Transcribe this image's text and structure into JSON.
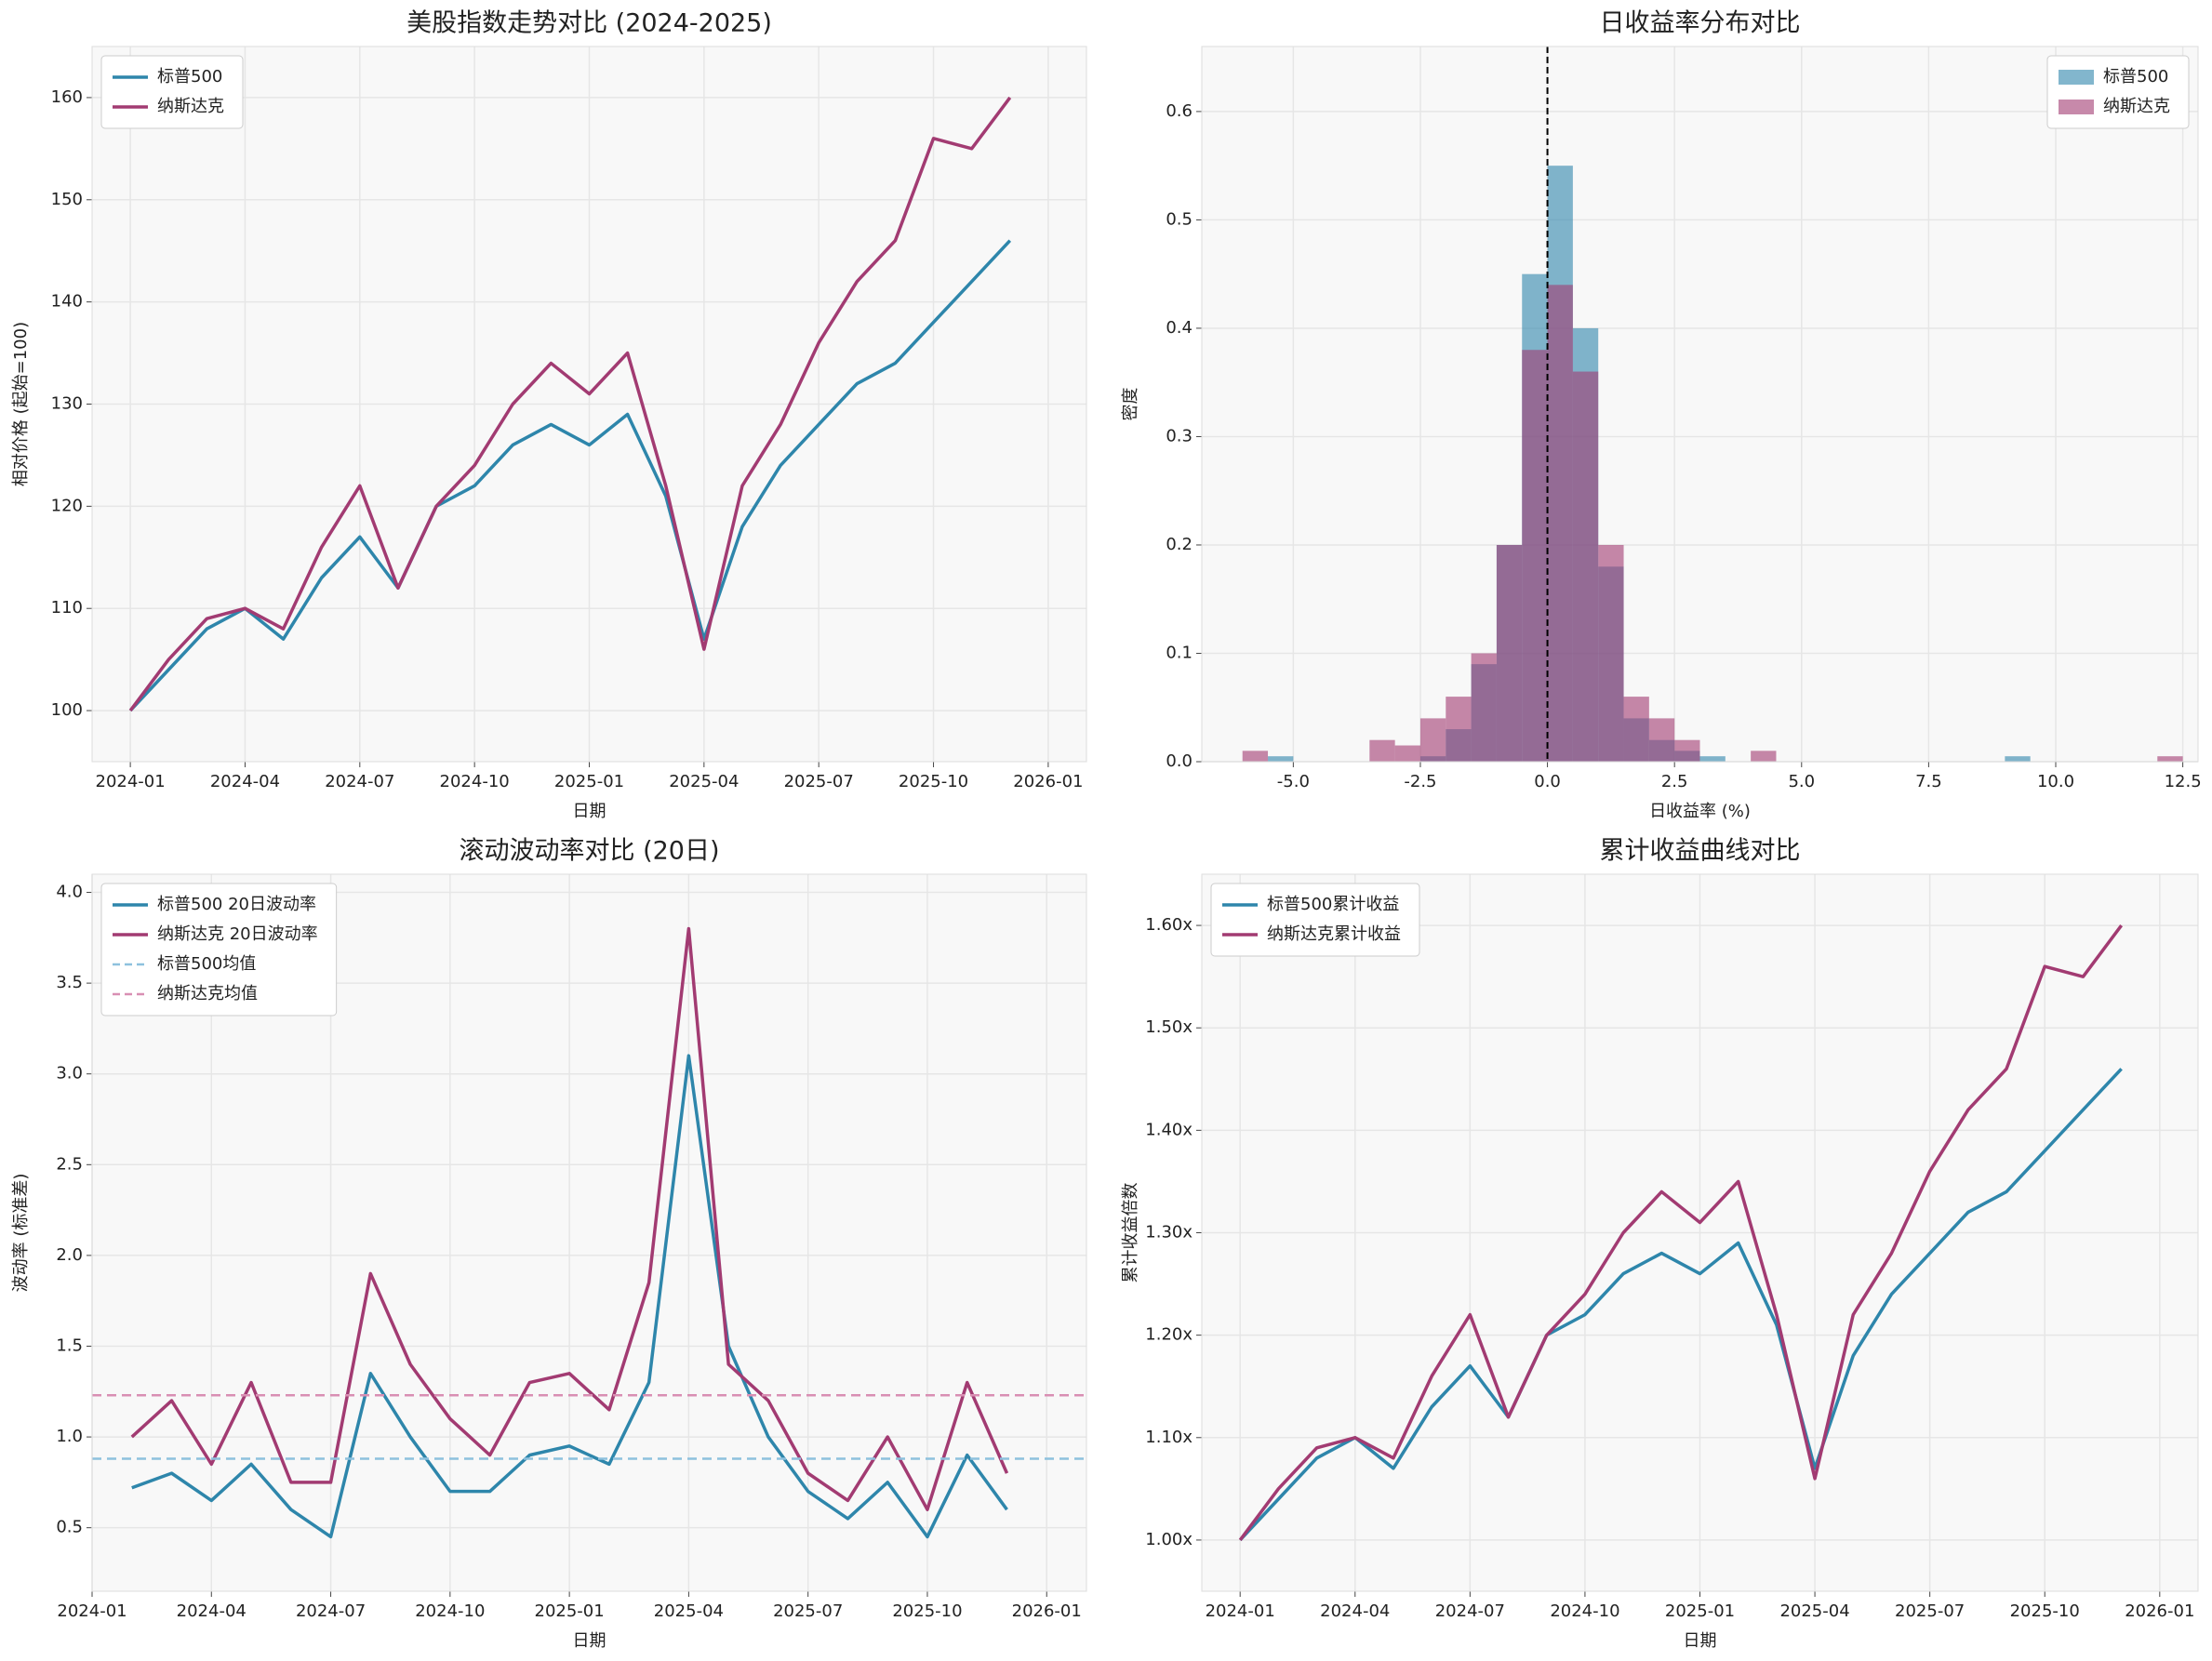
{
  "chart_data": [
    {
      "type": "line",
      "title": "美股指数走势对比 (2024-2025)",
      "xlabel": "日期",
      "ylabel": "相对价格 (起始=100)",
      "legend": "upper left",
      "grid": true,
      "x": [
        "2024-01",
        "2024-02",
        "2024-03",
        "2024-04",
        "2024-05",
        "2024-06",
        "2024-07",
        "2024-08",
        "2024-09",
        "2024-10",
        "2024-11",
        "2024-12",
        "2025-01",
        "2025-02",
        "2025-03",
        "2025-04",
        "2025-05",
        "2025-06",
        "2025-07",
        "2025-08",
        "2025-09",
        "2025-10",
        "2025-11",
        "2025-12"
      ],
      "series": [
        {
          "name": "标普500",
          "color": "#2e86ab",
          "values": [
            100,
            104,
            108,
            110,
            107,
            113,
            117,
            112,
            120,
            122,
            126,
            128,
            126,
            129,
            121,
            107,
            118,
            124,
            128,
            132,
            134,
            138,
            142,
            146
          ]
        },
        {
          "name": "纳斯达克",
          "color": "#a23b72",
          "values": [
            100,
            105,
            109,
            110,
            108,
            116,
            122,
            112,
            120,
            124,
            130,
            134,
            131,
            135,
            122,
            106,
            122,
            128,
            136,
            142,
            146,
            156,
            155,
            160
          ]
        }
      ],
      "xlim": [
        "2023-12",
        "2026-02"
      ],
      "xticks": [
        "2024-01",
        "2024-04",
        "2024-07",
        "2024-10",
        "2025-01",
        "2025-04",
        "2025-07",
        "2025-10",
        "2026-01"
      ],
      "ylim": [
        95,
        165
      ],
      "yticks": [
        100,
        110,
        120,
        130,
        140,
        150,
        160
      ]
    },
    {
      "type": "histogram",
      "title": "日收益率分布对比",
      "xlabel": "日收益率 (%)",
      "ylabel": "密度",
      "legend": "upper right",
      "grid": true,
      "alpha": 0.6,
      "vline": 0,
      "bins": [
        -6,
        -5.5,
        -5,
        -4.5,
        -4,
        -3.5,
        -3,
        -2.5,
        -2,
        -1.5,
        -1,
        -0.5,
        0,
        0.5,
        1,
        1.5,
        2,
        2.5,
        3,
        3.5,
        4,
        4.5,
        5,
        5.5,
        6,
        6.5,
        7,
        7.5,
        8,
        8.5,
        9,
        9.5,
        10,
        10.5,
        11,
        11.5,
        12,
        12.5
      ],
      "series": [
        {
          "name": "标普500",
          "color": "#2e86ab",
          "values": [
            0,
            0.005,
            0,
            0,
            0,
            0,
            0,
            0.005,
            0.03,
            0.09,
            0.2,
            0.45,
            0.55,
            0.4,
            0.18,
            0.04,
            0.02,
            0.01,
            0.005,
            0,
            0,
            0,
            0,
            0,
            0,
            0,
            0,
            0,
            0,
            0,
            0.005,
            0,
            0,
            0,
            0,
            0,
            0
          ]
        },
        {
          "name": "纳斯达克",
          "color": "#a23b72",
          "values": [
            0.01,
            0,
            0,
            0,
            0,
            0.02,
            0.015,
            0.04,
            0.06,
            0.1,
            0.2,
            0.38,
            0.44,
            0.36,
            0.2,
            0.06,
            0.04,
            0.02,
            0,
            0,
            0.01,
            0,
            0,
            0,
            0,
            0,
            0,
            0,
            0,
            0,
            0,
            0,
            0,
            0,
            0,
            0,
            0.005
          ]
        }
      ],
      "xlim": [
        -6.8,
        12.8
      ],
      "xticks": [
        {
          "value": -5,
          "label": "-5.0"
        },
        -2.5,
        {
          "value": 0,
          "label": "0.0"
        },
        2.5,
        {
          "value": 5,
          "label": "5.0"
        },
        7.5,
        {
          "value": 10,
          "label": "10.0"
        },
        12.5
      ],
      "ylim": [
        0,
        0.66
      ],
      "yticks": [
        {
          "value": 0,
          "label": "0.0"
        },
        0.1,
        0.2,
        0.3,
        0.4,
        0.5,
        0.6
      ]
    },
    {
      "type": "line",
      "title": "滚动波动率对比 (20日)",
      "xlabel": "日期",
      "ylabel": "波动率 (标准差)",
      "legend": "upper left",
      "grid": true,
      "x": [
        "2024-02",
        "2024-03",
        "2024-04",
        "2024-05",
        "2024-06",
        "2024-07",
        "2024-08",
        "2024-09",
        "2024-10",
        "2024-11",
        "2024-12",
        "2025-01",
        "2025-02",
        "2025-03",
        "2025-04",
        "2025-05",
        "2025-06",
        "2025-07",
        "2025-08",
        "2025-09",
        "2025-10",
        "2025-11",
        "2025-12"
      ],
      "series": [
        {
          "name": "标普500 20日波动率",
          "color": "#2e86ab",
          "values": [
            0.72,
            0.8,
            0.65,
            0.85,
            0.6,
            0.45,
            1.35,
            1.0,
            0.7,
            0.7,
            0.9,
            0.95,
            0.85,
            1.3,
            3.1,
            1.5,
            1.0,
            0.7,
            0.55,
            0.75,
            0.45,
            0.9,
            0.6
          ]
        },
        {
          "name": "纳斯达克 20日波动率",
          "color": "#a23b72",
          "values": [
            1.0,
            1.2,
            0.85,
            1.3,
            0.75,
            0.75,
            1.9,
            1.4,
            1.1,
            0.9,
            1.3,
            1.35,
            1.15,
            1.85,
            3.8,
            1.4,
            1.2,
            0.8,
            0.65,
            1.0,
            0.6,
            1.3,
            0.8
          ]
        }
      ],
      "hlines": [
        {
          "name": "标普500均值",
          "color": "#8ec1de",
          "value": 0.88
        },
        {
          "name": "纳斯达克均值",
          "color": "#d98fb3",
          "value": 1.23
        }
      ],
      "xlim": [
        "2024-01",
        "2026-02"
      ],
      "xticks": [
        "2024-01",
        "2024-04",
        "2024-07",
        "2024-10",
        "2025-01",
        "2025-04",
        "2025-07",
        "2025-10",
        "2026-01"
      ],
      "ylim": [
        0.15,
        4.1
      ],
      "yticks": [
        0.5,
        {
          "value": 1,
          "label": "1.0"
        },
        1.5,
        {
          "value": 2,
          "label": "2.0"
        },
        2.5,
        {
          "value": 3,
          "label": "3.0"
        },
        3.5,
        {
          "value": 4,
          "label": "4.0"
        }
      ]
    },
    {
      "type": "line",
      "title": "累计收益曲线对比",
      "xlabel": "日期",
      "ylabel": "累计收益倍数",
      "legend": "upper left",
      "grid": true,
      "x": [
        "2024-01",
        "2024-02",
        "2024-03",
        "2024-04",
        "2024-05",
        "2024-06",
        "2024-07",
        "2024-08",
        "2024-09",
        "2024-10",
        "2024-11",
        "2024-12",
        "2025-01",
        "2025-02",
        "2025-03",
        "2025-04",
        "2025-05",
        "2025-06",
        "2025-07",
        "2025-08",
        "2025-09",
        "2025-10",
        "2025-11",
        "2025-12"
      ],
      "series": [
        {
          "name": "标普500累计收益",
          "color": "#2e86ab",
          "values": [
            1.0,
            1.04,
            1.08,
            1.1,
            1.07,
            1.13,
            1.17,
            1.12,
            1.2,
            1.22,
            1.26,
            1.28,
            1.26,
            1.29,
            1.21,
            1.07,
            1.18,
            1.24,
            1.28,
            1.32,
            1.34,
            1.38,
            1.42,
            1.46
          ]
        },
        {
          "name": "纳斯达克累计收益",
          "color": "#a23b72",
          "values": [
            1.0,
            1.05,
            1.09,
            1.1,
            1.08,
            1.16,
            1.22,
            1.12,
            1.2,
            1.24,
            1.3,
            1.34,
            1.31,
            1.35,
            1.22,
            1.06,
            1.22,
            1.28,
            1.36,
            1.42,
            1.46,
            1.56,
            1.55,
            1.6
          ]
        }
      ],
      "xlim": [
        "2023-12",
        "2026-02"
      ],
      "xticks": [
        "2024-01",
        "2024-04",
        "2024-07",
        "2024-10",
        "2025-01",
        "2025-04",
        "2025-07",
        "2025-10",
        "2026-01"
      ],
      "ylim": [
        0.95,
        1.65
      ],
      "yticks": [
        {
          "value": 1,
          "label": "1.00x"
        },
        {
          "value": 1.1,
          "label": "1.10x"
        },
        {
          "value": 1.2,
          "label": "1.20x"
        },
        {
          "value": 1.3,
          "label": "1.30x"
        },
        {
          "value": 1.4,
          "label": "1.40x"
        },
        {
          "value": 1.5,
          "label": "1.50x"
        },
        {
          "value": 1.6,
          "label": "1.60x"
        }
      ]
    }
  ]
}
